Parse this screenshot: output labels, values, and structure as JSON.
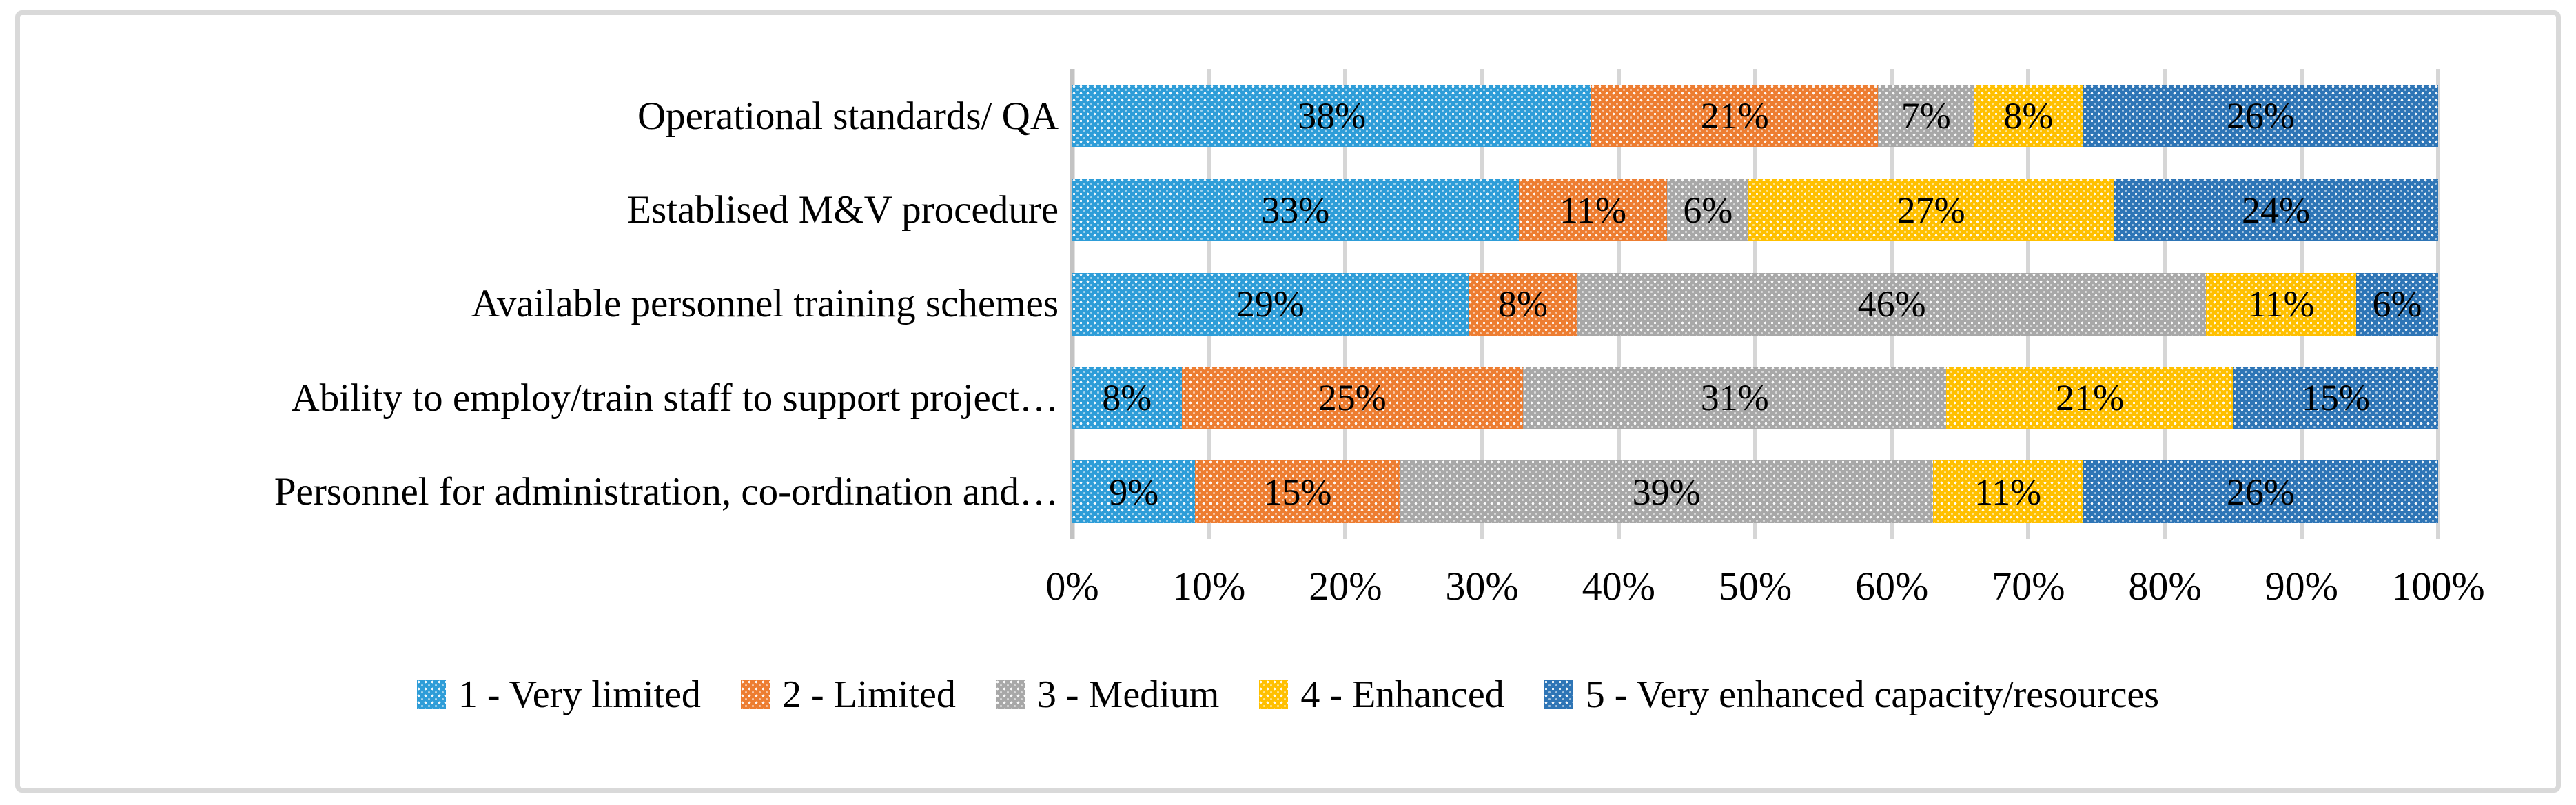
{
  "chart_data": {
    "type": "bar",
    "stacked": true,
    "orientation": "horizontal",
    "title": "",
    "xlabel": "",
    "ylabel": "",
    "xlim": [
      0,
      100
    ],
    "grid": true,
    "legend_position": "bottom",
    "data_label_suffix": "%",
    "categories": [
      "Operational standards/ QA",
      "Establised M&V procedure",
      "Available personnel training schemes",
      "Ability to employ/train  staff to support project…",
      "Personnel for administration, co-ordination and…"
    ],
    "series": [
      {
        "name": "1 - Very limited",
        "color": "#2E9DD8",
        "values": [
          38,
          33,
          29,
          8,
          9
        ]
      },
      {
        "name": "2 - Limited",
        "color": "#ED7D31",
        "values": [
          21,
          11,
          8,
          25,
          15
        ]
      },
      {
        "name": "3 - Medium",
        "color": "#A8A8A8",
        "values": [
          7,
          6,
          46,
          31,
          39
        ]
      },
      {
        "name": "4 - Enhanced",
        "color": "#FFC000",
        "values": [
          8,
          27,
          11,
          21,
          11
        ]
      },
      {
        "name": "5 - Very enhanced capacity/resources",
        "color": "#2E75B6",
        "values": [
          26,
          24,
          6,
          15,
          26
        ]
      }
    ],
    "x_ticks": [
      "0%",
      "10%",
      "20%",
      "30%",
      "40%",
      "50%",
      "60%",
      "70%",
      "80%",
      "90%",
      "100%"
    ]
  }
}
